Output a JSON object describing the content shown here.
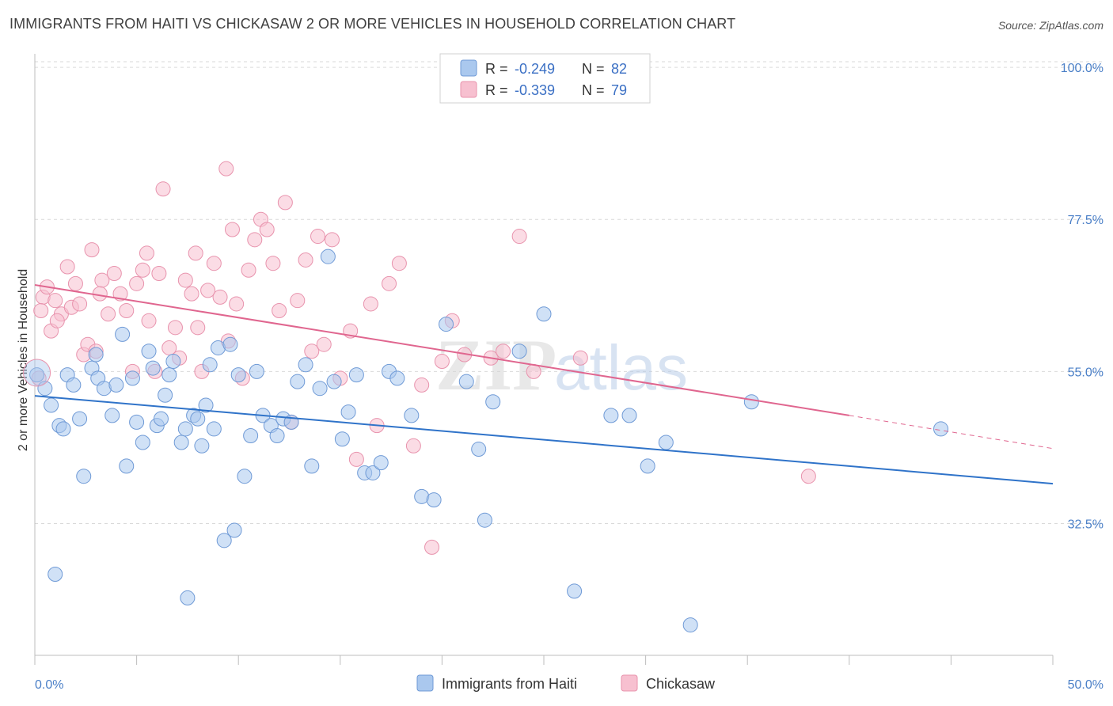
{
  "header": {
    "title": "IMMIGRANTS FROM HAITI VS CHICKASAW 2 OR MORE VEHICLES IN HOUSEHOLD CORRELATION CHART",
    "source": "Source: ZipAtlas.com"
  },
  "watermark": {
    "zip": "ZIP",
    "atlas": "atlas"
  },
  "legend_top": [
    {
      "r_label": "R =",
      "r_value": "-0.249",
      "n_label": "N =",
      "n_value": "82"
    },
    {
      "r_label": "R =",
      "r_value": "-0.339",
      "n_label": "N =",
      "n_value": "79"
    }
  ],
  "legend_bottom": [
    "Immigrants from Haiti",
    "Chickasaw"
  ],
  "colors": {
    "blue_fill": "#aac8ee",
    "blue_stroke": "#6f9ad6",
    "blue_line": "#2f73c9",
    "pink_fill": "#f7c0d0",
    "pink_stroke": "#e893ad",
    "pink_line": "#e0668f",
    "grid": "#d9d9d9",
    "tick_text": "#4a7fc7"
  },
  "chart_data": {
    "type": "scatter",
    "xlabel": "",
    "ylabel": "2 or more Vehicles in Household",
    "xlim": [
      0,
      50
    ],
    "ylim": [
      13,
      102
    ],
    "x_tick_labels": [
      "0.0%",
      "50.0%"
    ],
    "y_ticks": [
      32.5,
      55.0,
      77.5,
      100.0
    ],
    "y_tick_labels": [
      "32.5%",
      "55.0%",
      "77.5%",
      "100.0%"
    ],
    "grid": "horizontal dashed",
    "legend_position": "top-center",
    "series": [
      {
        "name": "Immigrants from Haiti",
        "color": "#aac8ee",
        "trend": {
          "x": [
            0,
            50
          ],
          "y": [
            51.4,
            38.4
          ]
        },
        "points": [
          [
            0.1,
            54.5
          ],
          [
            0.5,
            52.5
          ],
          [
            0.8,
            50.0
          ],
          [
            1.2,
            47.0
          ],
          [
            1.4,
            46.5
          ],
          [
            1.6,
            54.5
          ],
          [
            1.9,
            53.0
          ],
          [
            2.2,
            48.0
          ],
          [
            2.4,
            39.5
          ],
          [
            2.8,
            55.5
          ],
          [
            3.0,
            57.5
          ],
          [
            3.1,
            54.0
          ],
          [
            3.4,
            52.5
          ],
          [
            3.8,
            48.5
          ],
          [
            4.0,
            53.0
          ],
          [
            4.3,
            60.5
          ],
          [
            4.5,
            41.0
          ],
          [
            4.8,
            54.0
          ],
          [
            5.0,
            47.5
          ],
          [
            5.3,
            44.5
          ],
          [
            5.6,
            58.0
          ],
          [
            5.8,
            55.5
          ],
          [
            6.0,
            47.0
          ],
          [
            6.2,
            48.0
          ],
          [
            6.4,
            51.5
          ],
          [
            6.6,
            54.5
          ],
          [
            6.8,
            56.5
          ],
          [
            7.2,
            44.5
          ],
          [
            7.4,
            46.5
          ],
          [
            7.8,
            48.5
          ],
          [
            8.0,
            48.0
          ],
          [
            8.2,
            44.0
          ],
          [
            8.4,
            50.0
          ],
          [
            8.6,
            56.0
          ],
          [
            8.8,
            46.5
          ],
          [
            9.0,
            58.5
          ],
          [
            9.3,
            30.0
          ],
          [
            9.6,
            59.0
          ],
          [
            9.8,
            31.5
          ],
          [
            10.0,
            54.5
          ],
          [
            10.3,
            39.5
          ],
          [
            10.6,
            45.5
          ],
          [
            10.9,
            55.0
          ],
          [
            11.2,
            48.5
          ],
          [
            11.6,
            47.0
          ],
          [
            11.9,
            45.5
          ],
          [
            12.2,
            48.0
          ],
          [
            12.6,
            47.5
          ],
          [
            12.9,
            53.5
          ],
          [
            13.3,
            56.0
          ],
          [
            13.6,
            41.0
          ],
          [
            14.0,
            52.5
          ],
          [
            14.4,
            72.0
          ],
          [
            14.7,
            53.5
          ],
          [
            15.1,
            45.0
          ],
          [
            15.4,
            49.0
          ],
          [
            15.8,
            54.5
          ],
          [
            16.2,
            40.0
          ],
          [
            16.6,
            40.0
          ],
          [
            17.0,
            41.5
          ],
          [
            17.4,
            55.0
          ],
          [
            17.8,
            54.0
          ],
          [
            18.5,
            48.5
          ],
          [
            19.0,
            36.5
          ],
          [
            19.6,
            36.0
          ],
          [
            20.2,
            62.0
          ],
          [
            21.2,
            53.5
          ],
          [
            21.8,
            43.5
          ],
          [
            22.1,
            33.0
          ],
          [
            22.5,
            50.5
          ],
          [
            23.8,
            58.0
          ],
          [
            25.0,
            63.5
          ],
          [
            26.5,
            22.5
          ],
          [
            28.3,
            48.5
          ],
          [
            29.2,
            48.5
          ],
          [
            30.1,
            41.0
          ],
          [
            31.0,
            44.5
          ],
          [
            32.2,
            17.5
          ],
          [
            35.2,
            50.5
          ],
          [
            44.5,
            46.5
          ],
          [
            1.0,
            25.0
          ],
          [
            7.5,
            21.5
          ]
        ]
      },
      {
        "name": "Chickasaw",
        "color": "#f7c0d0",
        "trend": {
          "x": [
            0,
            40
          ],
          "y": [
            67.8,
            48.5
          ]
        },
        "trend_dashed": {
          "x": [
            40,
            50
          ],
          "y": [
            48.5,
            43.6
          ]
        },
        "points": [
          [
            0.2,
            54.0
          ],
          [
            0.4,
            66.0
          ],
          [
            0.6,
            67.5
          ],
          [
            0.8,
            61.0
          ],
          [
            1.0,
            65.5
          ],
          [
            1.3,
            63.5
          ],
          [
            1.6,
            70.5
          ],
          [
            1.8,
            64.5
          ],
          [
            2.0,
            68.0
          ],
          [
            2.2,
            65.0
          ],
          [
            2.4,
            57.5
          ],
          [
            2.6,
            59.0
          ],
          [
            2.8,
            73.0
          ],
          [
            3.0,
            58.0
          ],
          [
            3.3,
            68.5
          ],
          [
            3.6,
            63.5
          ],
          [
            3.9,
            69.5
          ],
          [
            4.2,
            66.5
          ],
          [
            4.5,
            64.0
          ],
          [
            4.8,
            55.0
          ],
          [
            5.0,
            68.0
          ],
          [
            5.3,
            70.0
          ],
          [
            5.6,
            62.5
          ],
          [
            5.9,
            55.0
          ],
          [
            6.1,
            69.5
          ],
          [
            6.3,
            82.0
          ],
          [
            6.6,
            58.5
          ],
          [
            6.9,
            61.5
          ],
          [
            7.1,
            57.0
          ],
          [
            7.4,
            68.5
          ],
          [
            7.7,
            66.5
          ],
          [
            7.9,
            72.5
          ],
          [
            8.2,
            55.0
          ],
          [
            8.5,
            67.0
          ],
          [
            8.8,
            71.0
          ],
          [
            9.1,
            66.0
          ],
          [
            9.4,
            85.0
          ],
          [
            9.7,
            76.0
          ],
          [
            9.9,
            65.0
          ],
          [
            10.2,
            54.0
          ],
          [
            10.5,
            70.0
          ],
          [
            10.8,
            74.5
          ],
          [
            11.1,
            77.5
          ],
          [
            11.4,
            76.0
          ],
          [
            11.7,
            71.0
          ],
          [
            12.0,
            64.0
          ],
          [
            12.3,
            80.0
          ],
          [
            12.6,
            47.5
          ],
          [
            12.9,
            65.5
          ],
          [
            13.3,
            71.5
          ],
          [
            13.6,
            58.0
          ],
          [
            13.9,
            75.0
          ],
          [
            14.2,
            59.0
          ],
          [
            14.6,
            74.5
          ],
          [
            15.0,
            54.0
          ],
          [
            15.5,
            61.0
          ],
          [
            15.8,
            42.0
          ],
          [
            16.5,
            65.0
          ],
          [
            16.8,
            47.0
          ],
          [
            17.4,
            68.0
          ],
          [
            17.9,
            71.0
          ],
          [
            18.6,
            44.0
          ],
          [
            19.0,
            53.0
          ],
          [
            19.5,
            29.0
          ],
          [
            20.0,
            56.5
          ],
          [
            20.5,
            62.5
          ],
          [
            21.1,
            57.5
          ],
          [
            22.4,
            57.0
          ],
          [
            23.0,
            58.0
          ],
          [
            23.8,
            75.0
          ],
          [
            24.5,
            55.0
          ],
          [
            26.8,
            57.0
          ],
          [
            38.0,
            39.5
          ],
          [
            0.3,
            64.0
          ],
          [
            1.1,
            62.5
          ],
          [
            3.2,
            66.5
          ],
          [
            5.5,
            72.5
          ],
          [
            8.0,
            61.5
          ],
          [
            9.5,
            59.5
          ]
        ]
      }
    ]
  }
}
